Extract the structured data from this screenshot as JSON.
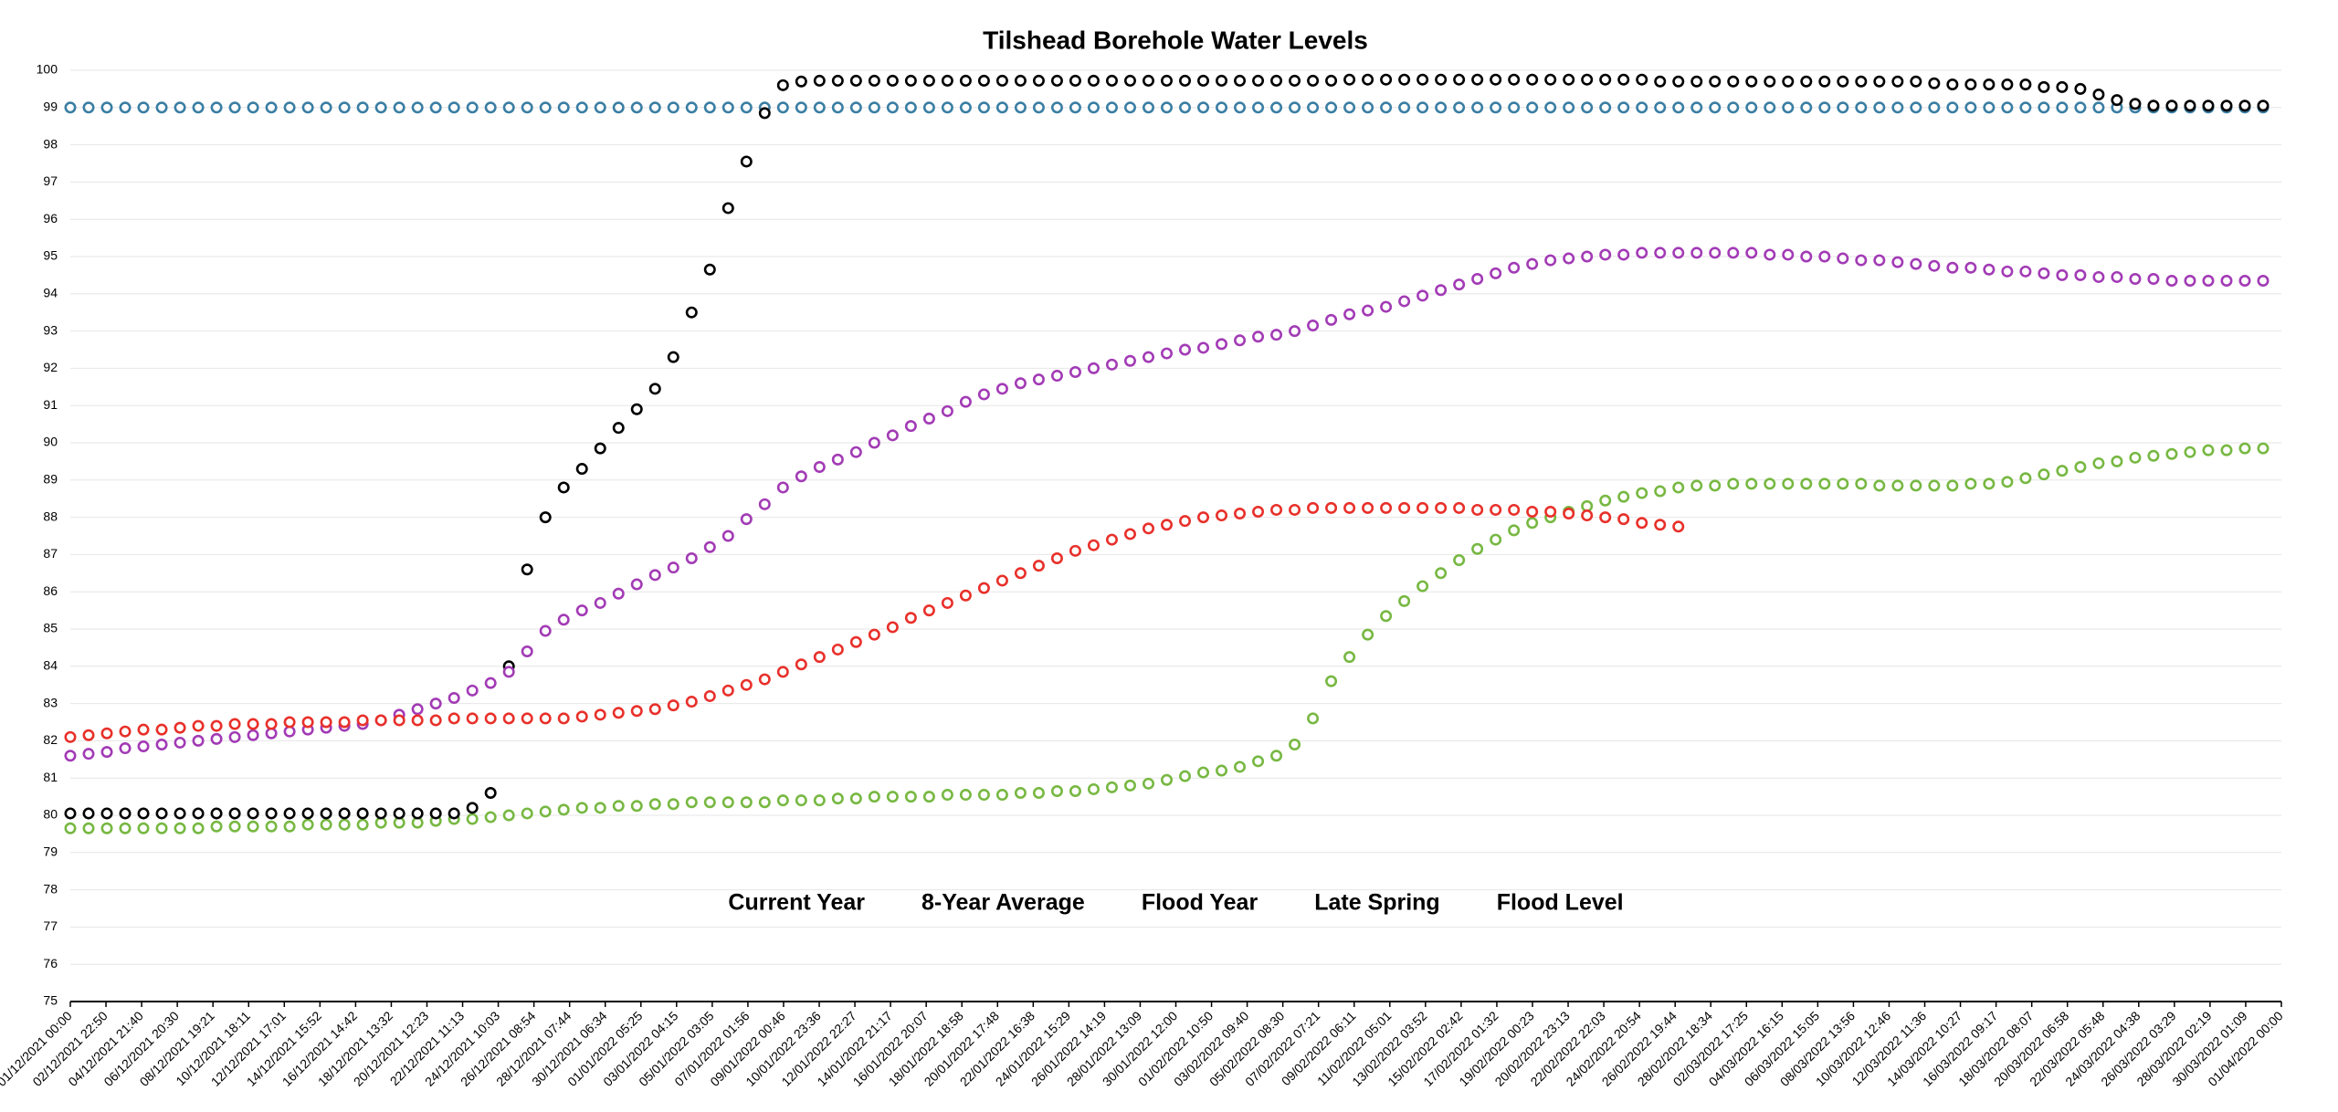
{
  "chart_data": {
    "type": "scatter",
    "title": "Tilshead Borehole Water Levels",
    "x": [
      0,
      1,
      2,
      3,
      4,
      5,
      6,
      7,
      8,
      9,
      10,
      11,
      12,
      13,
      14,
      15,
      16,
      17,
      18,
      19,
      20,
      21,
      22,
      23,
      24,
      25,
      26,
      27,
      28,
      29,
      30,
      31,
      32,
      33,
      34,
      35,
      36,
      37,
      38,
      39,
      40,
      41,
      42,
      43,
      44,
      45,
      46,
      47,
      48,
      49,
      50,
      51,
      52,
      53,
      54,
      55,
      56,
      57,
      58,
      59,
      60,
      61,
      62,
      63,
      64,
      65,
      66,
      67,
      68,
      69,
      70,
      71,
      72,
      73,
      74,
      75,
      76,
      77,
      78,
      79,
      80,
      81,
      82,
      83,
      84,
      85,
      86,
      87,
      88,
      89,
      90,
      91,
      92,
      93,
      94,
      95,
      96,
      97,
      98,
      99,
      100,
      101,
      102,
      103,
      104,
      105,
      106,
      107,
      108,
      109,
      110,
      111,
      112,
      113,
      114,
      115,
      116,
      117,
      118,
      119,
      120
    ],
    "xlim": [
      0,
      121
    ],
    "xticks": [
      {
        "value": 0,
        "label": "01/12/2021 00:00"
      },
      {
        "value": 1.952,
        "label": "02/12/2021 22:50"
      },
      {
        "value": 3.903,
        "label": "04/12/2021 21:40"
      },
      {
        "value": 5.855,
        "label": "06/12/2021 20:30"
      },
      {
        "value": 7.806,
        "label": "08/12/2021 19:21"
      },
      {
        "value": 9.758,
        "label": "10/12/2021 18:11"
      },
      {
        "value": 11.71,
        "label": "12/12/2021 17:01"
      },
      {
        "value": 13.661,
        "label": "14/12/2021 15:52"
      },
      {
        "value": 15.613,
        "label": "16/12/2021 14:42"
      },
      {
        "value": 17.565,
        "label": "18/12/2021 13:32"
      },
      {
        "value": 19.516,
        "label": "20/12/2021 12:23"
      },
      {
        "value": 21.468,
        "label": "22/12/2021 11:13"
      },
      {
        "value": 23.419,
        "label": "24/12/2021 10:03"
      },
      {
        "value": 25.371,
        "label": "26/12/2021 08:54"
      },
      {
        "value": 27.323,
        "label": "28/12/2021 07:44"
      },
      {
        "value": 29.274,
        "label": "30/12/2021 06:34"
      },
      {
        "value": 31.226,
        "label": "01/01/2022 05:25"
      },
      {
        "value": 33.177,
        "label": "03/01/2022 04:15"
      },
      {
        "value": 35.129,
        "label": "05/01/2022 03:05"
      },
      {
        "value": 37.081,
        "label": "07/01/2022 01:56"
      },
      {
        "value": 39.032,
        "label": "09/01/2022 00:46"
      },
      {
        "value": 40.984,
        "label": "10/01/2022 23:36"
      },
      {
        "value": 42.935,
        "label": "12/01/2022 22:27"
      },
      {
        "value": 44.887,
        "label": "14/01/2022 21:17"
      },
      {
        "value": 46.839,
        "label": "16/01/2022 20:07"
      },
      {
        "value": 48.79,
        "label": "18/01/2022 18:58"
      },
      {
        "value": 50.742,
        "label": "20/01/2022 17:48"
      },
      {
        "value": 52.694,
        "label": "22/01/2022 16:38"
      },
      {
        "value": 54.645,
        "label": "24/01/2022 15:29"
      },
      {
        "value": 56.597,
        "label": "26/01/2022 14:19"
      },
      {
        "value": 58.548,
        "label": "28/01/2022 13:09"
      },
      {
        "value": 60.5,
        "label": "30/01/2022 12:00"
      },
      {
        "value": 62.452,
        "label": "01/02/2022 10:50"
      },
      {
        "value": 64.403,
        "label": "03/02/2022 09:40"
      },
      {
        "value": 66.355,
        "label": "05/02/2022 08:30"
      },
      {
        "value": 68.306,
        "label": "07/02/2022 07:21"
      },
      {
        "value": 70.258,
        "label": "09/02/2022 06:11"
      },
      {
        "value": 72.21,
        "label": "11/02/2022 05:01"
      },
      {
        "value": 74.161,
        "label": "13/02/2022 03:52"
      },
      {
        "value": 76.113,
        "label": "15/02/2022 02:42"
      },
      {
        "value": 78.065,
        "label": "17/02/2022 01:32"
      },
      {
        "value": 80.016,
        "label": "19/02/2022 00:23"
      },
      {
        "value": 81.968,
        "label": "20/02/2022 23:13"
      },
      {
        "value": 83.919,
        "label": "22/02/2022 22:03"
      },
      {
        "value": 85.871,
        "label": "24/02/2022 20:54"
      },
      {
        "value": 87.823,
        "label": "26/02/2022 19:44"
      },
      {
        "value": 89.774,
        "label": "28/02/2022 18:34"
      },
      {
        "value": 91.726,
        "label": "02/03/2022 17:25"
      },
      {
        "value": 93.677,
        "label": "04/03/2022 16:15"
      },
      {
        "value": 95.629,
        "label": "06/03/2022 15:05"
      },
      {
        "value": 97.581,
        "label": "08/03/2022 13:56"
      },
      {
        "value": 99.532,
        "label": "10/03/2022 12:46"
      },
      {
        "value": 101.484,
        "label": "12/03/2022 11:36"
      },
      {
        "value": 103.435,
        "label": "14/03/2022 10:27"
      },
      {
        "value": 105.387,
        "label": "16/03/2022 09:17"
      },
      {
        "value": 107.339,
        "label": "18/03/2022 08:07"
      },
      {
        "value": 109.29,
        "label": "20/03/2022 06:58"
      },
      {
        "value": 111.242,
        "label": "22/03/2022 05:48"
      },
      {
        "value": 113.194,
        "label": "24/03/2022 04:38"
      },
      {
        "value": 115.145,
        "label": "26/03/2022 03:29"
      },
      {
        "value": 117.097,
        "label": "28/03/2022 02:19"
      },
      {
        "value": 119.048,
        "label": "30/03/2022 01:09"
      },
      {
        "value": 121,
        "label": "01/04/2022 00:00"
      }
    ],
    "ylim": [
      75,
      100
    ],
    "yticks": [
      75,
      76,
      77,
      78,
      79,
      80,
      81,
      82,
      83,
      84,
      85,
      86,
      87,
      88,
      89,
      90,
      91,
      92,
      93,
      94,
      95,
      96,
      97,
      98,
      99,
      100
    ],
    "grid": true,
    "legend": "center",
    "series": [
      {
        "name": "Current Year",
        "color": "#e8302a",
        "values": [
          82.1,
          82.15,
          82.2,
          82.25,
          82.3,
          82.3,
          82.35,
          82.4,
          82.4,
          82.45,
          82.45,
          82.45,
          82.5,
          82.5,
          82.5,
          82.5,
          82.55,
          82.55,
          82.55,
          82.55,
          82.55,
          82.6,
          82.6,
          82.6,
          82.6,
          82.6,
          82.6,
          82.6,
          82.65,
          82.7,
          82.75,
          82.8,
          82.85,
          82.95,
          83.05,
          83.2,
          83.35,
          83.5,
          83.65,
          83.85,
          84.05,
          84.25,
          84.45,
          84.65,
          84.85,
          85.05,
          85.3,
          85.5,
          85.7,
          85.9,
          86.1,
          86.3,
          86.5,
          86.7,
          86.9,
          87.1,
          87.25,
          87.4,
          87.55,
          87.7,
          87.8,
          87.9,
          88.0,
          88.05,
          88.1,
          88.15,
          88.2,
          88.2,
          88.25,
          88.25,
          88.25,
          88.25,
          88.25,
          88.25,
          88.25,
          88.25,
          88.25,
          88.2,
          88.2,
          88.2,
          88.15,
          88.15,
          88.1,
          88.05,
          88.0,
          87.95,
          87.85,
          87.8,
          87.75,
          null,
          null,
          null,
          null,
          null,
          null,
          null,
          null,
          null,
          null,
          null,
          null,
          null,
          null,
          null,
          null,
          null,
          null,
          null,
          null,
          null,
          null,
          null,
          null,
          null,
          null,
          null,
          null,
          null,
          null,
          null,
          null
        ]
      },
      {
        "name": "8-Year Average",
        "color": "#a23bb5",
        "values": [
          81.6,
          81.65,
          81.7,
          81.8,
          81.85,
          81.9,
          81.95,
          82.0,
          82.05,
          82.1,
          82.15,
          82.2,
          82.25,
          82.3,
          82.35,
          82.4,
          82.45,
          82.55,
          82.7,
          82.85,
          83.0,
          83.15,
          83.35,
          83.55,
          83.85,
          84.4,
          84.95,
          85.25,
          85.5,
          85.7,
          85.95,
          86.2,
          86.45,
          86.65,
          86.9,
          87.2,
          87.5,
          87.95,
          88.35,
          88.8,
          89.1,
          89.35,
          89.55,
          89.75,
          90.0,
          90.2,
          90.45,
          90.65,
          90.85,
          91.1,
          91.3,
          91.45,
          91.6,
          91.7,
          91.8,
          91.9,
          92.0,
          92.1,
          92.2,
          92.3,
          92.4,
          92.5,
          92.55,
          92.65,
          92.75,
          92.85,
          92.9,
          93.0,
          93.15,
          93.3,
          93.45,
          93.55,
          93.65,
          93.8,
          93.95,
          94.1,
          94.25,
          94.4,
          94.55,
          94.7,
          94.8,
          94.9,
          94.95,
          95.0,
          95.05,
          95.05,
          95.1,
          95.1,
          95.1,
          95.1,
          95.1,
          95.1,
          95.1,
          95.05,
          95.05,
          95.0,
          95.0,
          94.95,
          94.9,
          94.9,
          94.85,
          94.8,
          94.75,
          94.7,
          94.7,
          94.65,
          94.6,
          94.6,
          94.55,
          94.5,
          94.5,
          94.45,
          94.45,
          94.4,
          94.4,
          94.35,
          94.35,
          94.35,
          94.35,
          94.35,
          94.35
        ]
      },
      {
        "name": "Flood Year",
        "color": "#000000",
        "values": [
          80.05,
          80.05,
          80.05,
          80.05,
          80.05,
          80.05,
          80.05,
          80.05,
          80.05,
          80.05,
          80.05,
          80.05,
          80.05,
          80.05,
          80.05,
          80.05,
          80.05,
          80.05,
          80.05,
          80.05,
          80.05,
          80.05,
          80.2,
          80.6,
          84.0,
          86.6,
          88.0,
          88.8,
          89.3,
          89.85,
          90.4,
          90.9,
          91.45,
          92.3,
          93.5,
          94.65,
          96.3,
          97.55,
          98.85,
          99.6,
          99.7,
          99.72,
          99.72,
          99.72,
          99.72,
          99.72,
          99.72,
          99.72,
          99.72,
          99.72,
          99.72,
          99.72,
          99.72,
          99.72,
          99.72,
          99.72,
          99.72,
          99.72,
          99.72,
          99.72,
          99.72,
          99.72,
          99.72,
          99.72,
          99.72,
          99.72,
          99.72,
          99.72,
          99.72,
          99.72,
          99.75,
          99.75,
          99.75,
          99.75,
          99.75,
          99.75,
          99.75,
          99.75,
          99.75,
          99.75,
          99.75,
          99.75,
          99.75,
          99.75,
          99.75,
          99.75,
          99.75,
          99.7,
          99.7,
          99.7,
          99.7,
          99.7,
          99.7,
          99.7,
          99.7,
          99.7,
          99.7,
          99.7,
          99.7,
          99.7,
          99.7,
          99.7,
          99.65,
          99.62,
          99.62,
          99.62,
          99.62,
          99.62,
          99.55,
          99.55,
          99.5,
          99.35,
          99.2,
          99.1,
          99.05,
          99.05,
          99.05,
          99.05,
          99.05,
          99.05,
          99.05
        ]
      },
      {
        "name": "Late Spring",
        "color": "#77b842",
        "values": [
          79.65,
          79.65,
          79.65,
          79.65,
          79.65,
          79.65,
          79.65,
          79.65,
          79.7,
          79.7,
          79.7,
          79.7,
          79.7,
          79.75,
          79.75,
          79.75,
          79.75,
          79.8,
          79.8,
          79.8,
          79.85,
          79.9,
          79.9,
          79.95,
          80.0,
          80.05,
          80.1,
          80.15,
          80.2,
          80.2,
          80.25,
          80.25,
          80.3,
          80.3,
          80.35,
          80.35,
          80.35,
          80.35,
          80.35,
          80.4,
          80.4,
          80.4,
          80.45,
          80.45,
          80.5,
          80.5,
          80.5,
          80.5,
          80.55,
          80.55,
          80.55,
          80.55,
          80.6,
          80.6,
          80.65,
          80.65,
          80.7,
          80.75,
          80.8,
          80.85,
          80.95,
          81.05,
          81.15,
          81.2,
          81.3,
          81.45,
          81.6,
          81.9,
          82.6,
          83.6,
          84.25,
          84.85,
          85.35,
          85.75,
          86.15,
          86.5,
          86.85,
          87.15,
          87.4,
          87.65,
          87.85,
          88.0,
          88.15,
          88.3,
          88.45,
          88.55,
          88.65,
          88.7,
          88.8,
          88.85,
          88.85,
          88.9,
          88.9,
          88.9,
          88.9,
          88.9,
          88.9,
          88.9,
          88.9,
          88.85,
          88.85,
          88.85,
          88.85,
          88.85,
          88.9,
          88.9,
          88.95,
          89.05,
          89.15,
          89.25,
          89.35,
          89.45,
          89.5,
          89.6,
          89.65,
          89.7,
          89.75,
          89.8,
          89.8,
          89.85,
          89.85
        ]
      },
      {
        "name": "Flood Level",
        "color": "#3a7ea3",
        "values": [
          99,
          99,
          99,
          99,
          99,
          99,
          99,
          99,
          99,
          99,
          99,
          99,
          99,
          99,
          99,
          99,
          99,
          99,
          99,
          99,
          99,
          99,
          99,
          99,
          99,
          99,
          99,
          99,
          99,
          99,
          99,
          99,
          99,
          99,
          99,
          99,
          99,
          99,
          99,
          99,
          99,
          99,
          99,
          99,
          99,
          99,
          99,
          99,
          99,
          99,
          99,
          99,
          99,
          99,
          99,
          99,
          99,
          99,
          99,
          99,
          99,
          99,
          99,
          99,
          99,
          99,
          99,
          99,
          99,
          99,
          99,
          99,
          99,
          99,
          99,
          99,
          99,
          99,
          99,
          99,
          99,
          99,
          99,
          99,
          99,
          99,
          99,
          99,
          99,
          99,
          99,
          99,
          99,
          99,
          99,
          99,
          99,
          99,
          99,
          99,
          99,
          99,
          99,
          99,
          99,
          99,
          99,
          99,
          99,
          99,
          99,
          99,
          99,
          99,
          99,
          99,
          99,
          99,
          99,
          99,
          99
        ]
      }
    ]
  }
}
